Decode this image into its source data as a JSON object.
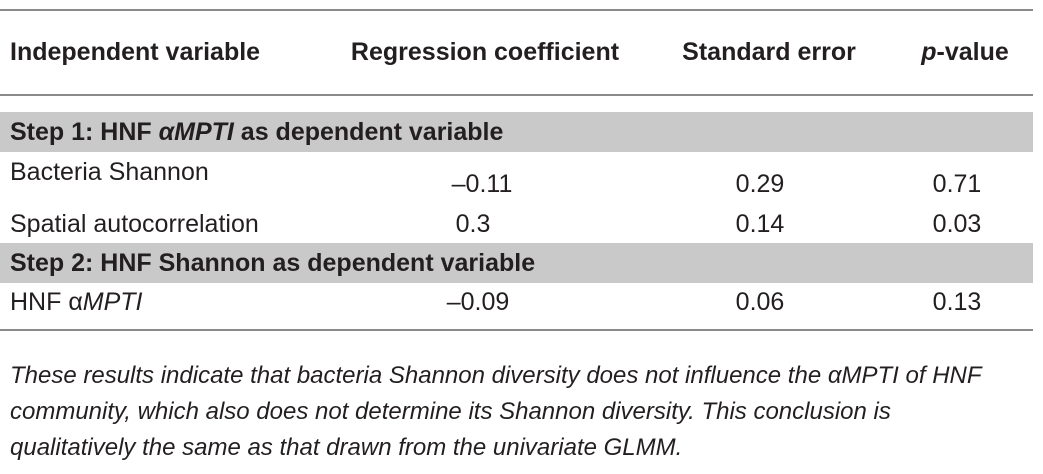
{
  "table": {
    "columns": [
      [
        "Independent variable"
      ],
      [
        "Regression coefficient"
      ],
      [
        "Standard error"
      ],
      [
        "p",
        "-value"
      ]
    ],
    "sections": [
      {
        "title": [
          "Step 1: HNF ",
          "αMPTI",
          " as dependent variable"
        ],
        "rows": [
          [
            [
              "Bacteria Shannon"
            ],
            "–0.11",
            "0.29",
            "0.71"
          ],
          [
            [
              "Spatial autocorrelation"
            ],
            "0.3",
            "0.14",
            "0.03"
          ]
        ]
      },
      {
        "title": [
          "Step 2: HNF Shannon as dependent variable"
        ],
        "rows": [
          [
            [
              "HNF α",
              "MPTI"
            ],
            "–0.09",
            "0.06",
            "0.13"
          ]
        ]
      }
    ],
    "footnote": "These results indicate that bacteria Shannon diversity does not influence the αMPTI of HNF community, which also does not determine its Shannon diversity. This conclusion is qualitatively the same as that drawn from the univariate GLMM."
  }
}
